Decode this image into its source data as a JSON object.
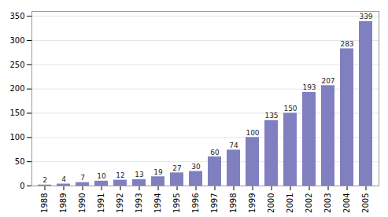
{
  "chart_data": {
    "type": "bar",
    "categories": [
      "1988",
      "1989",
      "1990",
      "1991",
      "1992",
      "1993",
      "1994",
      "1995",
      "1996",
      "1997",
      "1998",
      "1999",
      "2000",
      "2001",
      "2002",
      "2003",
      "2004",
      "2005"
    ],
    "values": [
      2,
      4,
      7,
      10,
      12,
      13,
      19,
      27,
      30,
      60,
      74,
      100,
      135,
      150,
      193,
      207,
      283,
      339
    ],
    "color": "#8080c0",
    "ylim": [
      0,
      360
    ],
    "yticks": [
      0,
      50,
      100,
      150,
      200,
      250,
      300,
      350
    ],
    "grid": true,
    "data_labels": true
  }
}
